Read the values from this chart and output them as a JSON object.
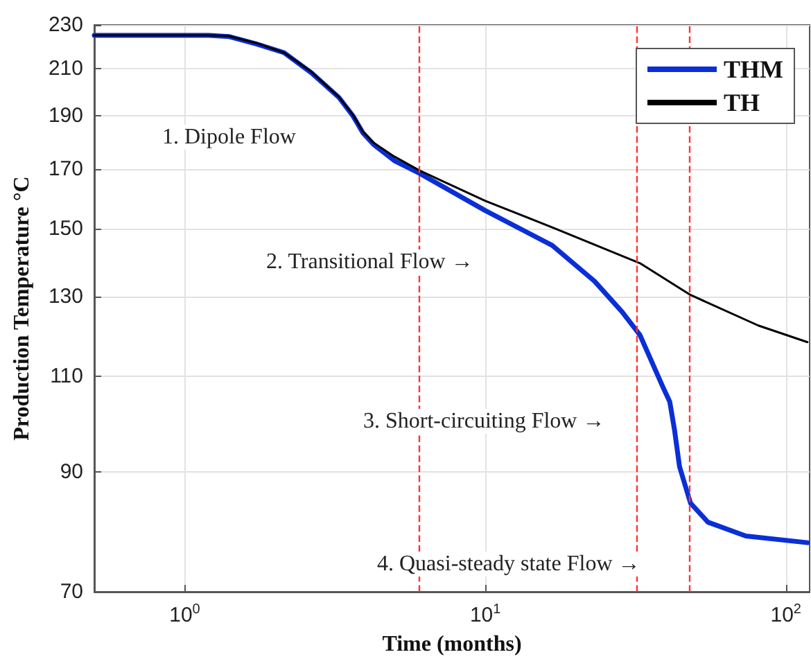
{
  "chart_data": {
    "type": "line",
    "xlabel": "Time (months)",
    "ylabel": "Production Temperature °C",
    "log": "xy",
    "xlim": [
      0.5,
      120
    ],
    "ylim": [
      70,
      230
    ],
    "xticks": [
      {
        "value": 1,
        "label": "10$^{0}$"
      },
      {
        "value": 10,
        "label": "10$^{1}$"
      },
      {
        "value": 100,
        "label": "10$^{2}$"
      }
    ],
    "yticks": [
      70,
      90,
      110,
      130,
      150,
      170,
      190,
      210,
      230
    ],
    "grid": true,
    "legend": "top right",
    "marker": "none",
    "line_style": "solid",
    "series": [
      {
        "name": "THM",
        "color": "#0a2fd6",
        "x": [
          0.5,
          1.2,
          1.4,
          1.73,
          2.14,
          2.64,
          3.26,
          3.63,
          3.91,
          4.25,
          4.98,
          6.03,
          10,
          16.7,
          23.1,
          28.5,
          32.7,
          39.1,
          41.1,
          42.6,
          44.3,
          48.2,
          55.1,
          73.6,
          118
        ],
        "values": [
          225,
          225,
          224.5,
          221,
          217,
          208,
          197.5,
          190,
          183.5,
          179,
          173,
          168.5,
          155.8,
          144.8,
          134.3,
          126,
          120,
          107.4,
          104.3,
          98.4,
          91,
          84.3,
          81,
          78.7,
          77.6
        ]
      },
      {
        "name": "TH",
        "color": "#000000",
        "x": [
          0.5,
          1.2,
          1.4,
          1.73,
          2.14,
          2.64,
          3.26,
          3.63,
          3.91,
          4.25,
          4.98,
          6.03,
          10,
          16.7,
          32.7,
          48.2,
          81,
          118
        ],
        "values": [
          225,
          225,
          224.7,
          221.4,
          217,
          208.4,
          197.7,
          190.4,
          183.9,
          179.6,
          174.5,
          169.5,
          159,
          150.4,
          139.5,
          130.5,
          122.4,
          118.2
        ]
      }
    ],
    "ref_lines": [
      {
        "axis": "x",
        "value": 6,
        "color": "#ff3333",
        "line_style": "dashed"
      },
      {
        "axis": "x",
        "value": 32,
        "color": "#ff3333",
        "line_style": "dashed"
      },
      {
        "axis": "x",
        "value": 48,
        "color": "#ff3333",
        "line_style": "dashed"
      }
    ],
    "annotations": [
      "1. Dipole Flow",
      "2. Transitional Flow →",
      "3. Short-circuiting Flow →",
      "4. Quasi-steady state Flow →"
    ]
  }
}
